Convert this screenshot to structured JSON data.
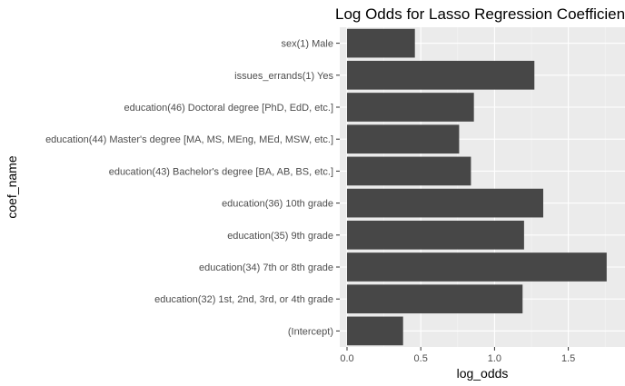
{
  "chart_data": {
    "type": "bar",
    "orientation": "horizontal",
    "title": "Log Odds for Lasso Regression Coefficients",
    "xlabel": "log_odds",
    "ylabel": "coef_name",
    "xlim": [
      -0.08,
      1.8
    ],
    "xticks": [
      0.0,
      0.5,
      1.0,
      1.5
    ],
    "xtick_labels": [
      "0.0",
      "0.5",
      "1.0",
      "1.5"
    ],
    "grid": true,
    "categories": [
      "sex(1) Male",
      "issues_errands(1) Yes",
      "education(46) Doctoral degree [PhD, EdD, etc.]",
      "education(44) Master's degree [MA, MS, MEng, MEd, MSW, etc.]",
      "education(43) Bachelor's degree [BA, AB, BS, etc.]",
      "education(36) 10th grade",
      "education(35) 9th grade",
      "education(34) 7th or 8th grade",
      "education(32) 1st, 2nd, 3rd, or 4th grade",
      "(Intercept)"
    ],
    "values": [
      0.46,
      1.27,
      0.86,
      0.76,
      0.84,
      1.33,
      1.2,
      1.76,
      1.19,
      0.38
    ],
    "colors": {
      "bar": "#474747",
      "panel": "#ebebeb",
      "grid_major": "#ffffff",
      "grid_minor": "#f5f5f5",
      "text": "#4d4d4d"
    }
  }
}
